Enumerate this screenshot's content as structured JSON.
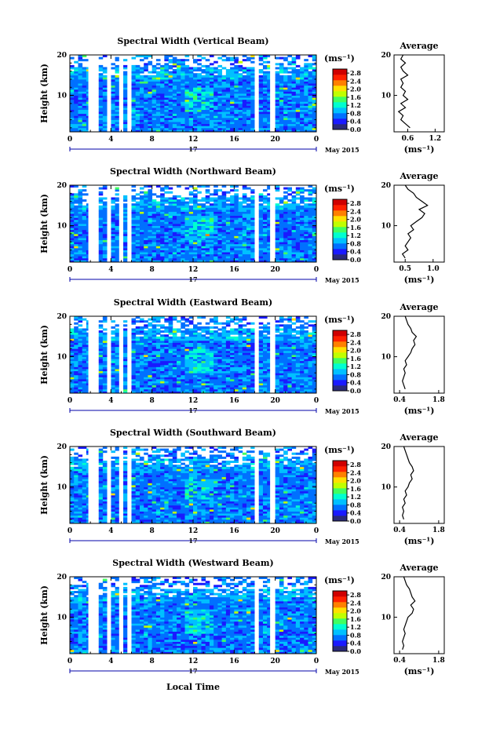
{
  "chart_data": {
    "type": "heatmap",
    "common": {
      "xlabel": "Local Time",
      "ylabel": "Height (km)",
      "x_ticks": [
        "0",
        "4",
        "8",
        "12",
        "16",
        "20",
        "0"
      ],
      "y_ticks": [
        "10",
        "20"
      ],
      "date_tick": "17",
      "date_label": "May 2015",
      "colorbar_unit": "(ms⁻¹)",
      "colorbar_ticks": [
        "0.0",
        "0.4",
        "0.8",
        "1.2",
        "1.6",
        "2.0",
        "2.4",
        "2.8"
      ],
      "colorbar_range": [
        0.0,
        3.0
      ],
      "colormap": [
        "#2a2a7a",
        "#1a1aff",
        "#0070ff",
        "#00c0ff",
        "#00ffd0",
        "#40ff60",
        "#c0ff00",
        "#ffe000",
        "#ff8000",
        "#ff2000",
        "#d00000"
      ],
      "ylim_km": [
        1,
        20
      ],
      "xlim_hours": [
        0,
        24
      ],
      "average_title": "Average",
      "average_xlabel": "(ms⁻¹)"
    },
    "panels": [
      {
        "title": "Spectral Width (Vertical Beam)",
        "gaps_hours": [
          [
            1.8,
            2.8
          ],
          [
            3.7,
            4.0
          ],
          [
            4.8,
            5.0
          ],
          [
            5.6,
            5.8
          ],
          [
            18.0,
            18.3
          ],
          [
            19.5,
            19.8
          ]
        ],
        "top_km": 20,
        "average_ticks": [
          "0.6",
          "1.2"
        ],
        "average_xlim": [
          0.3,
          1.4
        ],
        "average_profile": [
          [
            2,
            0.65
          ],
          [
            3,
            0.55
          ],
          [
            4,
            0.45
          ],
          [
            5,
            0.5
          ],
          [
            6,
            0.4
          ],
          [
            7,
            0.55
          ],
          [
            8,
            0.45
          ],
          [
            9,
            0.6
          ],
          [
            10,
            0.5
          ],
          [
            11,
            0.55
          ],
          [
            12,
            0.45
          ],
          [
            13,
            0.5
          ],
          [
            14,
            0.45
          ],
          [
            15,
            0.6
          ],
          [
            16,
            0.5
          ],
          [
            17,
            0.45
          ],
          [
            18,
            0.55
          ],
          [
            19,
            0.45
          ],
          [
            20,
            0.5
          ]
        ]
      },
      {
        "title": "Spectral Width (Northward Beam)",
        "gaps_hours": [
          [
            1.8,
            2.8
          ],
          [
            3.7,
            4.0
          ],
          [
            4.8,
            5.0
          ],
          [
            5.6,
            5.8
          ],
          [
            18.0,
            18.3
          ],
          [
            19.5,
            19.8
          ]
        ],
        "top_km": 20,
        "average_ticks": [
          "0.5",
          "1.0"
        ],
        "average_xlim": [
          0.3,
          1.2
        ],
        "average_profile": [
          [
            2,
            0.5
          ],
          [
            3,
            0.45
          ],
          [
            4,
            0.55
          ],
          [
            5,
            0.5
          ],
          [
            6,
            0.55
          ],
          [
            7,
            0.6
          ],
          [
            8,
            0.55
          ],
          [
            9,
            0.65
          ],
          [
            10,
            0.6
          ],
          [
            11,
            0.7
          ],
          [
            12,
            0.8
          ],
          [
            13,
            0.85
          ],
          [
            14,
            0.75
          ],
          [
            15,
            0.9
          ],
          [
            16,
            0.8
          ],
          [
            17,
            0.7
          ],
          [
            18,
            0.65
          ],
          [
            19,
            0.55
          ],
          [
            20,
            0.5
          ]
        ]
      },
      {
        "title": "Spectral Width (Eastward Beam)",
        "gaps_hours": [
          [
            1.8,
            2.8
          ],
          [
            3.7,
            4.0
          ],
          [
            4.8,
            5.0
          ],
          [
            5.6,
            5.8
          ],
          [
            18.0,
            18.3
          ],
          [
            19.5,
            19.8
          ]
        ],
        "top_km": 20,
        "average_ticks": [
          "0.4",
          "1.8"
        ],
        "average_xlim": [
          0.2,
          2.0
        ],
        "average_profile": [
          [
            2,
            0.6
          ],
          [
            3,
            0.55
          ],
          [
            4,
            0.5
          ],
          [
            5,
            0.55
          ],
          [
            6,
            0.6
          ],
          [
            7,
            0.55
          ],
          [
            8,
            0.65
          ],
          [
            9,
            0.6
          ],
          [
            10,
            0.7
          ],
          [
            11,
            0.8
          ],
          [
            12,
            0.85
          ],
          [
            13,
            0.95
          ],
          [
            14,
            0.9
          ],
          [
            15,
            1.0
          ],
          [
            16,
            0.85
          ],
          [
            17,
            0.8
          ],
          [
            18,
            0.7
          ],
          [
            19,
            0.65
          ],
          [
            20,
            0.6
          ]
        ]
      },
      {
        "title": "Spectral Width (Southward Beam)",
        "gaps_hours": [
          [
            1.8,
            2.8
          ],
          [
            3.7,
            4.0
          ],
          [
            4.8,
            5.0
          ],
          [
            5.6,
            5.8
          ],
          [
            18.0,
            18.3
          ],
          [
            19.5,
            19.8
          ]
        ],
        "top_km": 20,
        "average_ticks": [
          "0.4",
          "1.8"
        ],
        "average_xlim": [
          0.2,
          2.0
        ],
        "average_profile": [
          [
            2,
            0.55
          ],
          [
            3,
            0.5
          ],
          [
            4,
            0.55
          ],
          [
            5,
            0.5
          ],
          [
            6,
            0.6
          ],
          [
            7,
            0.55
          ],
          [
            8,
            0.65
          ],
          [
            9,
            0.6
          ],
          [
            10,
            0.7
          ],
          [
            11,
            0.75
          ],
          [
            12,
            0.85
          ],
          [
            13,
            0.8
          ],
          [
            14,
            0.9
          ],
          [
            15,
            0.85
          ],
          [
            16,
            0.75
          ],
          [
            17,
            0.7
          ],
          [
            18,
            0.65
          ],
          [
            19,
            0.6
          ],
          [
            20,
            0.55
          ]
        ]
      },
      {
        "title": "Spectral Width (Westward Beam)",
        "gaps_hours": [
          [
            1.8,
            2.8
          ],
          [
            3.7,
            4.0
          ],
          [
            4.8,
            5.0
          ],
          [
            5.6,
            5.8
          ],
          [
            18.0,
            18.3
          ],
          [
            19.5,
            19.8
          ]
        ],
        "top_km": 20,
        "average_ticks": [
          "0.4",
          "1.8"
        ],
        "average_xlim": [
          0.2,
          2.0
        ],
        "average_profile": [
          [
            2,
            0.5
          ],
          [
            3,
            0.55
          ],
          [
            4,
            0.5
          ],
          [
            5,
            0.55
          ],
          [
            6,
            0.6
          ],
          [
            7,
            0.55
          ],
          [
            8,
            0.6
          ],
          [
            9,
            0.65
          ],
          [
            10,
            0.7
          ],
          [
            11,
            0.85
          ],
          [
            12,
            0.9
          ],
          [
            13,
            0.8
          ],
          [
            14,
            0.95
          ],
          [
            15,
            0.85
          ],
          [
            16,
            0.8
          ],
          [
            17,
            0.75
          ],
          [
            18,
            0.65
          ],
          [
            19,
            0.6
          ],
          [
            20,
            0.55
          ]
        ]
      }
    ]
  }
}
